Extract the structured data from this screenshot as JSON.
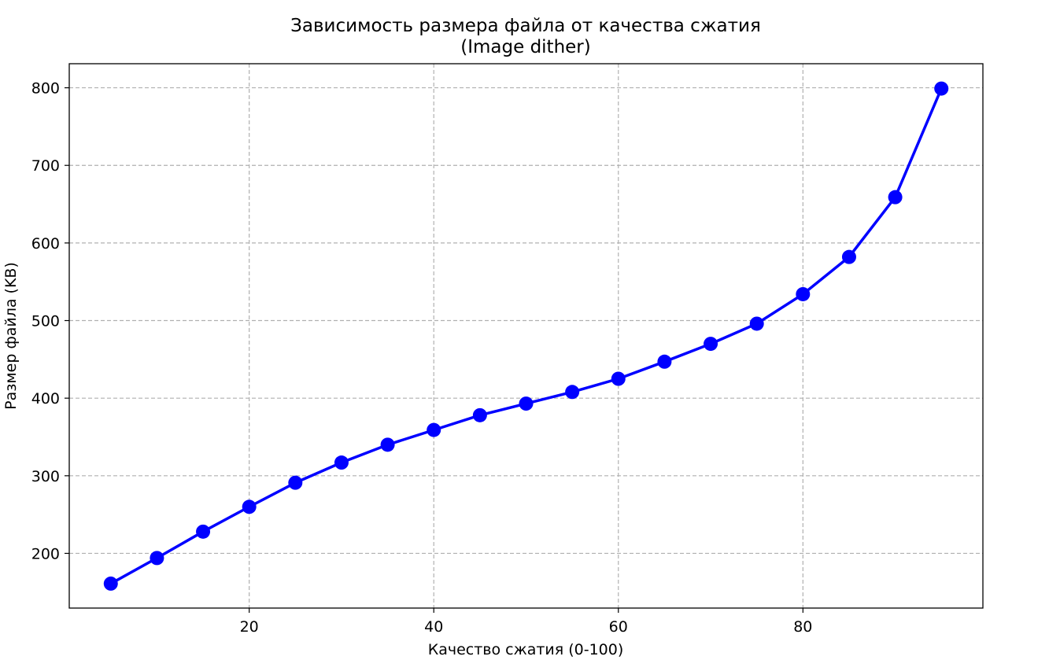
{
  "chart_data": {
    "type": "line",
    "title": "Зависимость размера файла от качества сжатия",
    "subtitle": "(Image dither)",
    "x_label": "Качество сжатия (0-100)",
    "y_label": "Размер файла (KB)",
    "x": [
      5,
      10,
      15,
      20,
      25,
      30,
      35,
      40,
      45,
      50,
      55,
      60,
      65,
      70,
      75,
      80,
      85,
      90,
      95
    ],
    "series": [
      {
        "color": "#0000ff",
        "values": [
          161,
          194,
          228,
          260,
          291,
          317,
          340,
          359,
          378,
          393,
          408,
          425,
          447,
          470,
          496,
          534,
          582,
          659,
          799
        ]
      }
    ],
    "xlim": [
      0.5,
      99.5
    ],
    "xticks": [
      20,
      40,
      60,
      80
    ],
    "ylim": [
      129.5,
      831
    ],
    "yticks": [
      200,
      300,
      400,
      500,
      600,
      700,
      800
    ],
    "grid": true
  }
}
